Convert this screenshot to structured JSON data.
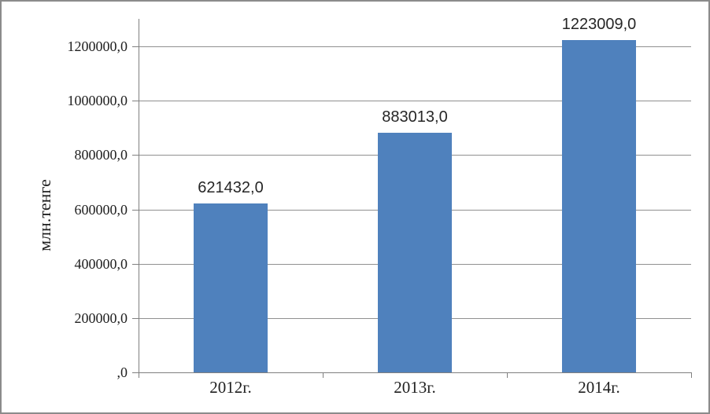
{
  "chart_data": {
    "type": "bar",
    "title": "",
    "categories": [
      "2012г.",
      "2013г.",
      "2014г."
    ],
    "values": [
      621432.0,
      883013.0,
      1223009.0
    ],
    "value_labels": [
      "621432,0",
      "883013,0",
      "1223009,0"
    ],
    "series": [
      {
        "name": "млн.тенге",
        "values": [
          621432.0,
          883013.0,
          1223009.0
        ]
      }
    ],
    "xlabel": "",
    "ylabel": "млн.тенге",
    "ylim": [
      0,
      1300000
    ],
    "yticks": [
      {
        "value": 0,
        "label": ",0"
      },
      {
        "value": 200000,
        "label": "200000,0"
      },
      {
        "value": 400000,
        "label": "400000,0"
      },
      {
        "value": 600000,
        "label": "600000,0"
      },
      {
        "value": 800000,
        "label": "800000,0"
      },
      {
        "value": 1000000,
        "label": "1000000,0"
      },
      {
        "value": 1200000,
        "label": "1200000,0"
      }
    ],
    "grid": "horizontal",
    "legend": "none",
    "colors": {
      "bar": "#4F81BD",
      "gridline": "#909090",
      "axis": "#808080",
      "text": "#1f1f1f",
      "frame_border": "#8b8b8b"
    }
  }
}
